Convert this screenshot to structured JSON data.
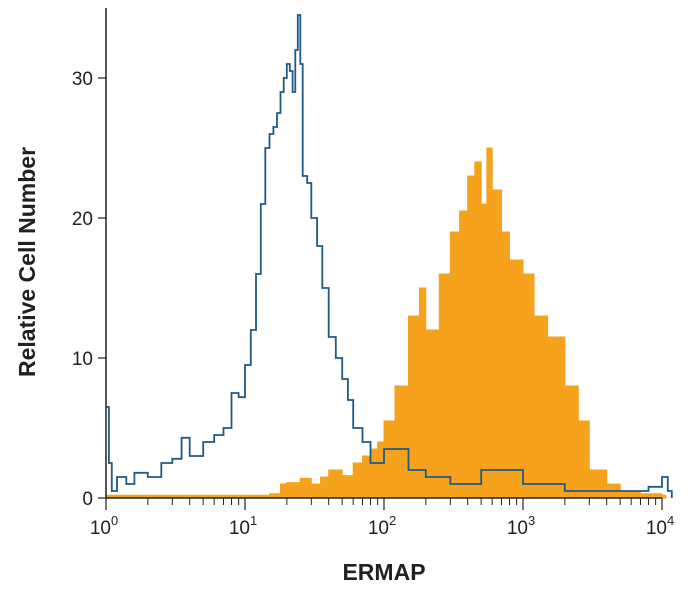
{
  "chart_data": {
    "type": "area",
    "title": "",
    "xlabel": "ERMAP",
    "ylabel": "Relative Cell Number",
    "xscale": "log",
    "xlim": [
      1,
      10000
    ],
    "ylim": [
      0,
      35
    ],
    "grid": false,
    "legend": "none",
    "x_ticks": [
      {
        "value": 1,
        "base": "10",
        "exp": "0"
      },
      {
        "value": 10,
        "base": "10",
        "exp": "1"
      },
      {
        "value": 100,
        "base": "10",
        "exp": "2"
      },
      {
        "value": 1000,
        "base": "10",
        "exp": "3"
      },
      {
        "value": 10000,
        "base": "10",
        "exp": "4"
      }
    ],
    "y_ticks": [
      {
        "value": 0,
        "label": "0"
      },
      {
        "value": 10,
        "label": "10"
      },
      {
        "value": 20,
        "label": "20"
      },
      {
        "value": 30,
        "label": "30"
      }
    ],
    "series": [
      {
        "style": "filled",
        "color": "#f7a21d",
        "x": [
          1,
          10,
          15,
          18,
          20,
          25,
          30,
          35,
          40,
          50,
          60,
          70,
          80,
          90,
          100,
          120,
          150,
          180,
          200,
          250,
          300,
          350,
          400,
          450,
          500,
          550,
          600,
          700,
          800,
          1000,
          1200,
          1500,
          2000,
          2500,
          3000,
          4000,
          5000,
          7000,
          10000
        ],
        "y": [
          0.2,
          0.2,
          0.3,
          1.0,
          1.1,
          1.4,
          1.0,
          1.5,
          2.0,
          1.6,
          2.5,
          3.0,
          3.5,
          4.0,
          5.5,
          8.0,
          13.0,
          15.0,
          12.0,
          16.0,
          19.0,
          20.5,
          23.0,
          24.0,
          21.0,
          25.0,
          22.0,
          19.0,
          17.0,
          16.0,
          13.0,
          11.5,
          8.0,
          5.5,
          2.0,
          1.0,
          0.5,
          0.3,
          0.2
        ]
      },
      {
        "style": "outline",
        "color": "#1f5a85",
        "x": [
          1,
          1.05,
          1.1,
          1.2,
          1.4,
          1.6,
          2,
          2.5,
          3,
          3.5,
          4,
          5,
          6,
          7,
          8,
          9,
          10,
          11,
          12,
          13,
          14,
          15,
          16,
          17,
          18,
          19,
          20,
          21,
          22,
          23,
          24,
          25,
          26,
          28,
          30,
          33,
          36,
          40,
          45,
          50,
          55,
          60,
          70,
          80,
          100,
          150,
          200,
          300,
          500,
          1000,
          2000,
          5000,
          8000,
          10000,
          11000
        ],
        "y": [
          6.5,
          2.5,
          0.5,
          1.5,
          1.0,
          1.8,
          1.5,
          2.5,
          2.8,
          4.3,
          3.0,
          4.0,
          4.5,
          5.0,
          7.5,
          7.2,
          9.5,
          12.0,
          16.0,
          21.0,
          25.0,
          26.0,
          26.5,
          27.5,
          29.0,
          30.0,
          31.0,
          30.5,
          29.0,
          32.0,
          34.5,
          31.0,
          23.0,
          22.5,
          20.0,
          18.0,
          15.0,
          11.5,
          10.0,
          8.5,
          7.0,
          5.0,
          4.0,
          2.5,
          3.5,
          2.0,
          1.5,
          1.0,
          2.0,
          1.0,
          0.5,
          0.5,
          0.8,
          1.5,
          0.5
        ]
      }
    ]
  }
}
